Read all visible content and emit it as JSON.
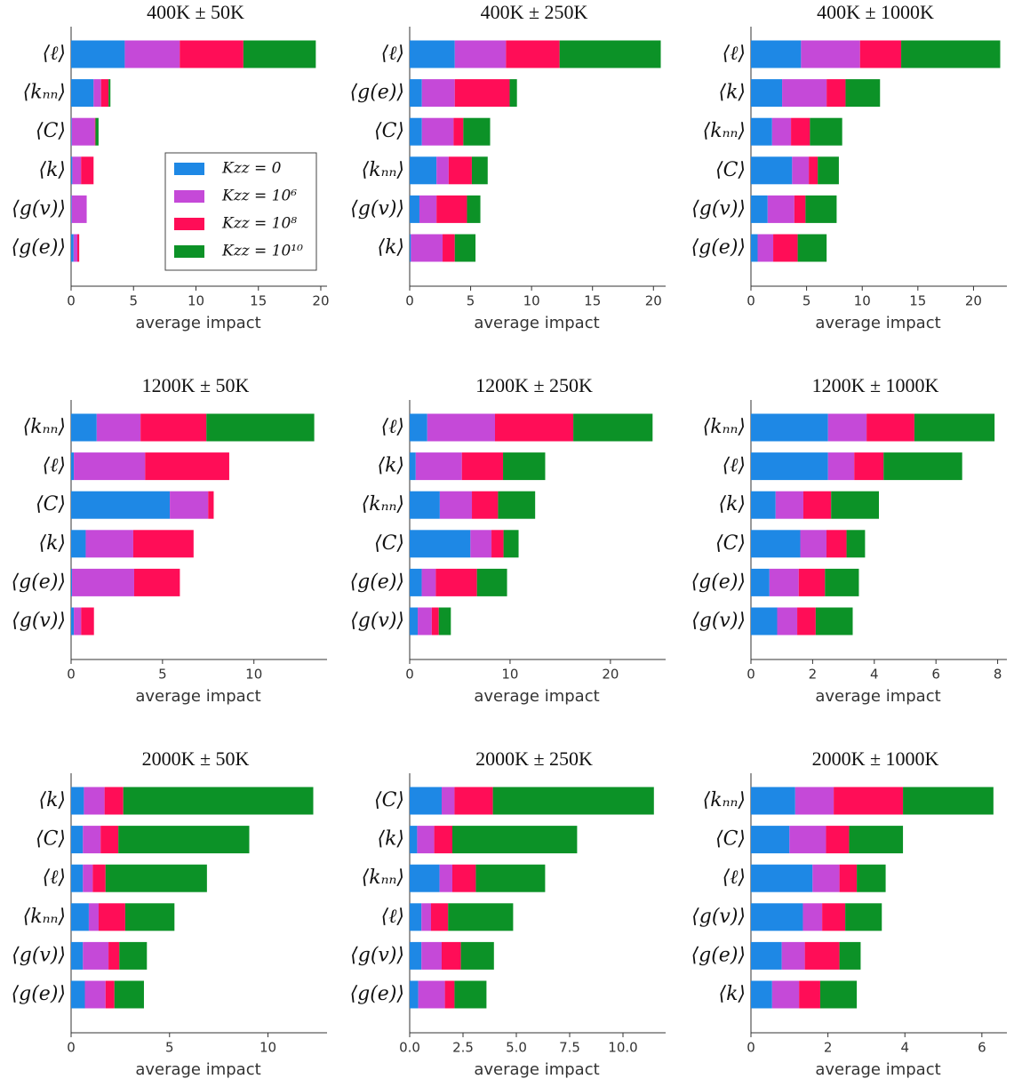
{
  "chart_data": [
    {
      "type": "bar",
      "orientation": "horizontal",
      "stacked": true,
      "title": "400K ± 50K",
      "xlabel": "average impact",
      "categories": [
        "⟨ℓ⟩",
        "⟨kₙₙ⟩",
        "⟨C⟩",
        "⟨k⟩",
        "⟨g(v)⟩",
        "⟨g(e)⟩"
      ],
      "series": [
        {
          "name": "Kzz = 0",
          "color": "#1e88e5",
          "values": [
            4.3,
            1.8,
            0.05,
            0.1,
            0.05,
            0.2
          ]
        },
        {
          "name": "Kzz = 10⁶",
          "color": "#c549d8",
          "values": [
            4.4,
            0.6,
            1.85,
            0.7,
            1.2,
            0.3
          ]
        },
        {
          "name": "Kzz = 10⁸",
          "color": "#ff0d57",
          "values": [
            5.1,
            0.6,
            0.05,
            1.0,
            0,
            0.15
          ]
        },
        {
          "name": "Kzz = 10¹⁰",
          "color": "#0c9227",
          "values": [
            5.8,
            0.15,
            0.25,
            0,
            0,
            0
          ]
        }
      ],
      "xlim": [
        0,
        20.5
      ],
      "xticks": [
        0,
        5,
        10,
        15,
        20
      ],
      "legend": "center right"
    },
    {
      "type": "bar",
      "orientation": "horizontal",
      "stacked": true,
      "title": "400K ± 250K",
      "xlabel": "average impact",
      "categories": [
        "⟨ℓ⟩",
        "⟨g(e)⟩",
        "⟨C⟩",
        "⟨kₙₙ⟩",
        "⟨g(v)⟩",
        "⟨k⟩"
      ],
      "series": [
        {
          "color": "#1e88e5",
          "values": [
            3.7,
            1.0,
            1.0,
            2.2,
            0.8,
            0.1
          ]
        },
        {
          "color": "#c549d8",
          "values": [
            4.2,
            2.7,
            2.6,
            1.0,
            1.4,
            2.6
          ]
        },
        {
          "color": "#ff0d57",
          "values": [
            4.4,
            4.5,
            0.8,
            1.9,
            2.5,
            1.0
          ]
        },
        {
          "color": "#0c9227",
          "values": [
            8.3,
            0.6,
            2.2,
            1.3,
            1.1,
            1.7
          ]
        }
      ],
      "xlim": [
        0,
        21
      ],
      "xticks": [
        0,
        5,
        10,
        15,
        20
      ]
    },
    {
      "type": "bar",
      "orientation": "horizontal",
      "stacked": true,
      "title": "400K ± 1000K",
      "xlabel": "average impact",
      "categories": [
        "⟨ℓ⟩",
        "⟨k⟩",
        "⟨kₙₙ⟩",
        "⟨C⟩",
        "⟨g(v)⟩",
        "⟨g(e)⟩"
      ],
      "series": [
        {
          "color": "#1e88e5",
          "values": [
            4.5,
            2.8,
            1.9,
            3.7,
            1.5,
            0.6
          ]
        },
        {
          "color": "#c549d8",
          "values": [
            5.3,
            4.0,
            1.7,
            1.5,
            2.4,
            1.4
          ]
        },
        {
          "color": "#ff0d57",
          "values": [
            3.7,
            1.7,
            1.7,
            0.8,
            1.0,
            2.2
          ]
        },
        {
          "color": "#0c9227",
          "values": [
            8.9,
            3.1,
            2.9,
            1.9,
            2.8,
            2.6
          ]
        }
      ],
      "xlim": [
        0,
        23
      ],
      "xticks": [
        0,
        5,
        10,
        15,
        20
      ]
    },
    {
      "type": "bar",
      "orientation": "horizontal",
      "stacked": true,
      "title": "1200K ± 50K",
      "xlabel": "average impact",
      "categories": [
        "⟨kₙₙ⟩",
        "⟨ℓ⟩",
        "⟨C⟩",
        "⟨k⟩",
        "⟨g(e)⟩",
        "⟨g(v)⟩"
      ],
      "series": [
        {
          "color": "#1e88e5",
          "values": [
            1.4,
            0.15,
            5.4,
            0.8,
            0.05,
            0.15
          ]
        },
        {
          "color": "#c549d8",
          "values": [
            2.4,
            3.9,
            2.1,
            2.6,
            3.4,
            0.4
          ]
        },
        {
          "color": "#ff0d57",
          "values": [
            3.6,
            4.6,
            0.3,
            3.3,
            2.5,
            0.7
          ]
        },
        {
          "color": "#0c9227",
          "values": [
            5.9,
            0,
            0,
            0,
            0,
            0
          ]
        }
      ],
      "xlim": [
        0,
        14
      ],
      "xticks": [
        0,
        5,
        10
      ]
    },
    {
      "type": "bar",
      "orientation": "horizontal",
      "stacked": true,
      "title": "1200K ± 250K",
      "xlabel": "average impact",
      "categories": [
        "⟨ℓ⟩",
        "⟨k⟩",
        "⟨kₙₙ⟩",
        "⟨C⟩",
        "⟨g(e)⟩",
        "⟨g(v)⟩"
      ],
      "series": [
        {
          "color": "#1e88e5",
          "values": [
            1.75,
            0.6,
            3.0,
            6.05,
            1.2,
            0.8
          ]
        },
        {
          "color": "#c549d8",
          "values": [
            6.75,
            4.6,
            3.2,
            2.1,
            1.4,
            1.4
          ]
        },
        {
          "color": "#ff0d57",
          "values": [
            7.8,
            4.1,
            2.6,
            1.2,
            4.1,
            0.7
          ]
        },
        {
          "color": "#0c9227",
          "values": [
            7.9,
            4.2,
            3.7,
            1.5,
            3.0,
            1.2
          ]
        }
      ],
      "xlim": [
        0,
        25.5
      ],
      "xticks": [
        0,
        10,
        20
      ]
    },
    {
      "type": "bar",
      "orientation": "horizontal",
      "stacked": true,
      "title": "1200K ± 1000K",
      "xlabel": "average impact",
      "categories": [
        "⟨kₙₙ⟩",
        "⟨ℓ⟩",
        "⟨k⟩",
        "⟨C⟩",
        "⟨g(e)⟩",
        "⟨g(v)⟩"
      ],
      "series": [
        {
          "color": "#1e88e5",
          "values": [
            2.5,
            2.5,
            0.8,
            1.6,
            0.6,
            0.85
          ]
        },
        {
          "color": "#c549d8",
          "values": [
            1.25,
            0.85,
            0.9,
            0.85,
            0.95,
            0.65
          ]
        },
        {
          "color": "#ff0d57",
          "values": [
            1.55,
            0.95,
            0.9,
            0.65,
            0.85,
            0.6
          ]
        },
        {
          "color": "#0c9227",
          "values": [
            2.6,
            2.55,
            1.55,
            0.6,
            1.1,
            1.2
          ]
        }
      ],
      "xlim": [
        0,
        8.3
      ],
      "xticks": [
        0,
        2,
        4,
        6,
        8
      ]
    },
    {
      "type": "bar",
      "orientation": "horizontal",
      "stacked": true,
      "title": "2000K ± 50K",
      "xlabel": "average impact",
      "categories": [
        "⟨k⟩",
        "⟨C⟩",
        "⟨ℓ⟩",
        "⟨kₙₙ⟩",
        "⟨g(v)⟩",
        "⟨g(e)⟩"
      ],
      "series": [
        {
          "color": "#1e88e5",
          "values": [
            0.65,
            0.6,
            0.6,
            0.9,
            0.6,
            0.7
          ]
        },
        {
          "color": "#c549d8",
          "values": [
            1.05,
            0.9,
            0.5,
            0.5,
            1.3,
            1.05
          ]
        },
        {
          "color": "#ff0d57",
          "values": [
            0.95,
            0.9,
            0.65,
            1.35,
            0.55,
            0.45
          ]
        },
        {
          "color": "#0c9227",
          "values": [
            9.65,
            6.65,
            5.15,
            2.5,
            1.4,
            1.5
          ]
        }
      ],
      "xlim": [
        0,
        13
      ],
      "xticks": [
        0,
        5,
        10
      ]
    },
    {
      "type": "bar",
      "orientation": "horizontal",
      "stacked": true,
      "title": "2000K ± 250K",
      "xlabel": "average impact",
      "categories": [
        "⟨C⟩",
        "⟨k⟩",
        "⟨kₙₙ⟩",
        "⟨ℓ⟩",
        "⟨g(v)⟩",
        "⟨g(e)⟩"
      ],
      "series": [
        {
          "color": "#1e88e5",
          "values": [
            1.5,
            0.35,
            1.4,
            0.55,
            0.55,
            0.4
          ]
        },
        {
          "color": "#c549d8",
          "values": [
            0.6,
            0.8,
            0.6,
            0.45,
            0.95,
            1.25
          ]
        },
        {
          "color": "#ff0d57",
          "values": [
            1.8,
            0.85,
            1.1,
            0.8,
            0.9,
            0.45
          ]
        },
        {
          "color": "#0c9227",
          "values": [
            7.55,
            5.85,
            3.25,
            3.05,
            1.55,
            1.5
          ]
        }
      ],
      "xlim": [
        0,
        12
      ],
      "xticks": [
        {
          "value": 0,
          "label": "0.0"
        },
        {
          "value": 2.5,
          "label": "2.5"
        },
        {
          "value": 5,
          "label": "5.0"
        },
        {
          "value": 7.5,
          "label": "7.5"
        },
        {
          "value": 10,
          "label": "10.0"
        }
      ]
    },
    {
      "type": "bar",
      "orientation": "horizontal",
      "stacked": true,
      "title": "2000K ± 1000K",
      "xlabel": "average impact",
      "categories": [
        "⟨kₙₙ⟩",
        "⟨C⟩",
        "⟨ℓ⟩",
        "⟨g(v)⟩",
        "⟨g(e)⟩",
        "⟨k⟩"
      ],
      "series": [
        {
          "color": "#1e88e5",
          "values": [
            1.15,
            1.0,
            1.6,
            1.35,
            0.8,
            0.55
          ]
        },
        {
          "color": "#c549d8",
          "values": [
            1.0,
            0.95,
            0.7,
            0.5,
            0.6,
            0.7
          ]
        },
        {
          "color": "#ff0d57",
          "values": [
            1.8,
            0.6,
            0.45,
            0.6,
            0.9,
            0.55
          ]
        },
        {
          "color": "#0c9227",
          "values": [
            2.35,
            1.4,
            0.75,
            0.95,
            0.55,
            0.95
          ]
        }
      ],
      "xlim": [
        0,
        6.65
      ],
      "xticks": [
        0,
        2,
        4,
        6
      ]
    }
  ]
}
